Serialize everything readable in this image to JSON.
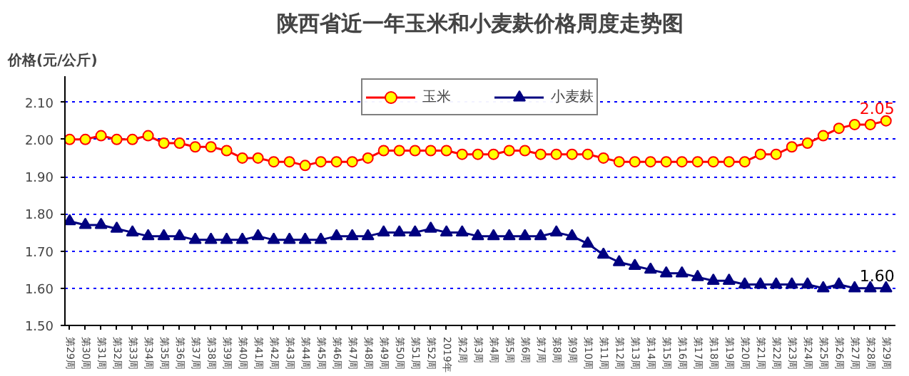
{
  "chart_data": {
    "type": "line",
    "title": "陕西省近一年玉米和小麦麸价格周度走势图",
    "ylabel": "价格(元/公斤)",
    "categories": [
      "第29周",
      "第30周",
      "第31周",
      "第32周",
      "第33周",
      "第34周",
      "第35周",
      "第36周",
      "第37周",
      "第38周",
      "第39周",
      "第40周",
      "第41周",
      "第42周",
      "第43周",
      "第44周",
      "第45周",
      "第46周",
      "第47周",
      "第48周",
      "第49周",
      "第50周",
      "第51周",
      "第52周",
      "2019年",
      "第2周",
      "第3周",
      "第4周",
      "第5周",
      "第6周",
      "第7周",
      "第8周",
      "第9周",
      "第10周",
      "第11周",
      "第12周",
      "第13周",
      "第14周",
      "第15周",
      "第16周",
      "第17周",
      "第18周",
      "第19周",
      "第20周",
      "第21周",
      "第22周",
      "第23周",
      "第24周",
      "第25周",
      "第26周",
      "第27周",
      "第28周",
      "第29周"
    ],
    "series": [
      {
        "name": "玉米",
        "color": "#ff0000",
        "marker": "circle",
        "values": [
          2.0,
          2.0,
          2.01,
          2.0,
          2.0,
          2.01,
          1.99,
          1.99,
          1.98,
          1.98,
          1.97,
          1.95,
          1.95,
          1.94,
          1.94,
          1.93,
          1.94,
          1.94,
          1.94,
          1.95,
          1.97,
          1.97,
          1.97,
          1.97,
          1.97,
          1.96,
          1.96,
          1.96,
          1.97,
          1.97,
          1.96,
          1.96,
          1.96,
          1.96,
          1.95,
          1.94,
          1.94,
          1.94,
          1.94,
          1.94,
          1.94,
          1.94,
          1.94,
          1.94,
          1.96,
          1.96,
          1.98,
          1.99,
          2.01,
          2.03,
          2.04,
          2.04,
          2.05
        ],
        "value_labels": [
          null,
          null,
          null,
          null,
          null,
          null,
          null,
          null,
          null,
          null,
          null,
          null,
          null,
          null,
          null,
          null,
          null,
          null,
          null,
          null,
          null,
          null,
          null,
          null,
          null,
          null,
          null,
          null,
          null,
          null,
          null,
          null,
          null,
          null,
          null,
          null,
          null,
          null,
          null,
          null,
          null,
          null,
          null,
          null,
          null,
          null,
          null,
          null,
          null,
          null,
          null,
          null,
          "2.05"
        ]
      },
      {
        "name": "小麦麸",
        "color": "#000080",
        "marker": "triangle",
        "values": [
          1.78,
          1.77,
          1.77,
          1.76,
          1.75,
          1.74,
          1.74,
          1.74,
          1.73,
          1.73,
          1.73,
          1.73,
          1.74,
          1.73,
          1.73,
          1.73,
          1.73,
          1.74,
          1.74,
          1.74,
          1.75,
          1.75,
          1.75,
          1.76,
          1.75,
          1.75,
          1.74,
          1.74,
          1.74,
          1.74,
          1.74,
          1.75,
          1.74,
          1.72,
          1.69,
          1.67,
          1.66,
          1.65,
          1.64,
          1.64,
          1.63,
          1.62,
          1.62,
          1.61,
          1.61,
          1.61,
          1.61,
          1.61,
          1.6,
          1.61,
          1.6,
          1.6,
          1.6
        ],
        "value_labels": [
          null,
          null,
          null,
          null,
          null,
          null,
          null,
          null,
          null,
          null,
          null,
          null,
          null,
          null,
          null,
          null,
          null,
          null,
          null,
          null,
          null,
          null,
          null,
          null,
          null,
          null,
          null,
          null,
          null,
          null,
          null,
          null,
          null,
          null,
          null,
          null,
          null,
          null,
          null,
          null,
          null,
          null,
          null,
          null,
          null,
          null,
          null,
          null,
          null,
          null,
          null,
          null,
          "1.60"
        ]
      }
    ],
    "ylim": [
      1.5,
      2.17
    ],
    "yticks": [
      {
        "value": 1.5,
        "label": "1.50"
      },
      {
        "value": 1.6,
        "label": "1.60"
      },
      {
        "value": 1.7,
        "label": "1.70"
      },
      {
        "value": 1.8,
        "label": "1.80"
      },
      {
        "value": 1.9,
        "label": "1.90"
      },
      {
        "value": 2.0,
        "label": "2.00"
      },
      {
        "value": 2.1,
        "label": "2.10"
      }
    ],
    "grid": "y",
    "legend": "top",
    "line_style": "solid"
  }
}
